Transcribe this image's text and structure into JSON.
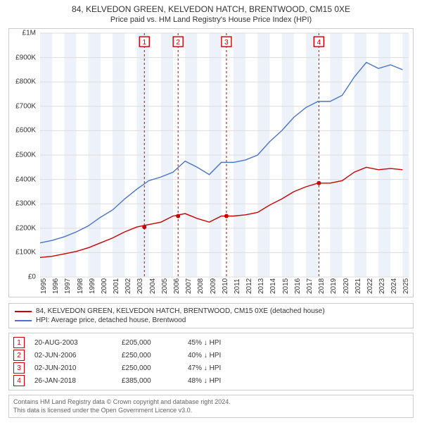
{
  "title_line1": "84, KELVEDON GREEN, KELVEDON HATCH, BRENTWOOD, CM15 0XE",
  "title_line2": "Price paid vs. HM Land Registry's House Price Index (HPI)",
  "chart": {
    "type": "line",
    "background_color": "#ffffff",
    "grid_color": "#dddddd",
    "border_color": "#cccccc",
    "band_color": "#e8eef7",
    "x": {
      "min": 1995,
      "max": 2025.5,
      "ticks": [
        1995,
        1996,
        1997,
        1998,
        1999,
        2000,
        2001,
        2002,
        2003,
        2004,
        2005,
        2006,
        2007,
        2008,
        2009,
        2010,
        2011,
        2012,
        2013,
        2014,
        2015,
        2016,
        2017,
        2018,
        2019,
        2020,
        2021,
        2022,
        2023,
        2024,
        2025
      ]
    },
    "y": {
      "min": 0,
      "max": 1000000,
      "ticks": [
        0,
        100000,
        200000,
        300000,
        400000,
        500000,
        600000,
        700000,
        800000,
        900000,
        1000000
      ],
      "tick_labels": [
        "£0",
        "£100K",
        "£200K",
        "£300K",
        "£400K",
        "£500K",
        "£600K",
        "£700K",
        "£800K",
        "£900K",
        "£1M"
      ]
    },
    "bands": [
      [
        1995,
        1996
      ],
      [
        1997,
        1998
      ],
      [
        1999,
        2000
      ],
      [
        2001,
        2002
      ],
      [
        2003,
        2004
      ],
      [
        2005,
        2006
      ],
      [
        2007,
        2008
      ],
      [
        2009,
        2010
      ],
      [
        2011,
        2012
      ],
      [
        2013,
        2014
      ],
      [
        2015,
        2016
      ],
      [
        2017,
        2018
      ],
      [
        2019,
        2020
      ],
      [
        2021,
        2022
      ],
      [
        2023,
        2024
      ],
      [
        2025,
        2025.5
      ]
    ],
    "event_lines": [
      2003.63,
      2006.42,
      2010.42,
      2018.07
    ],
    "event_line_color": "#cc0000",
    "series": [
      {
        "id": "hpi",
        "label": "HPI: Average price, detached house, Brentwood",
        "color": "#4a74c9",
        "points": [
          [
            1995,
            140000
          ],
          [
            1996,
            150000
          ],
          [
            1997,
            165000
          ],
          [
            1998,
            185000
          ],
          [
            1999,
            210000
          ],
          [
            2000,
            245000
          ],
          [
            2001,
            275000
          ],
          [
            2002,
            320000
          ],
          [
            2003,
            360000
          ],
          [
            2004,
            395000
          ],
          [
            2005,
            410000
          ],
          [
            2006,
            430000
          ],
          [
            2007,
            475000
          ],
          [
            2008,
            450000
          ],
          [
            2009,
            420000
          ],
          [
            2010,
            470000
          ],
          [
            2011,
            470000
          ],
          [
            2012,
            480000
          ],
          [
            2013,
            500000
          ],
          [
            2014,
            555000
          ],
          [
            2015,
            600000
          ],
          [
            2016,
            655000
          ],
          [
            2017,
            695000
          ],
          [
            2018,
            720000
          ],
          [
            2019,
            720000
          ],
          [
            2020,
            745000
          ],
          [
            2021,
            820000
          ],
          [
            2022,
            880000
          ],
          [
            2023,
            855000
          ],
          [
            2024,
            870000
          ],
          [
            2025,
            850000
          ]
        ]
      },
      {
        "id": "property",
        "label": "84, KELVEDON GREEN, KELVEDON HATCH, BRENTWOOD, CM15 0XE (detached house)",
        "color": "#cc0000",
        "points": [
          [
            1995,
            80000
          ],
          [
            1996,
            85000
          ],
          [
            1997,
            95000
          ],
          [
            1998,
            105000
          ],
          [
            1999,
            120000
          ],
          [
            2000,
            140000
          ],
          [
            2001,
            160000
          ],
          [
            2002,
            185000
          ],
          [
            2003,
            205000
          ],
          [
            2004,
            215000
          ],
          [
            2005,
            225000
          ],
          [
            2006,
            250000
          ],
          [
            2007,
            260000
          ],
          [
            2008,
            240000
          ],
          [
            2009,
            225000
          ],
          [
            2010,
            250000
          ],
          [
            2011,
            250000
          ],
          [
            2012,
            255000
          ],
          [
            2013,
            265000
          ],
          [
            2014,
            295000
          ],
          [
            2015,
            320000
          ],
          [
            2016,
            350000
          ],
          [
            2017,
            370000
          ],
          [
            2018,
            385000
          ],
          [
            2019,
            385000
          ],
          [
            2020,
            395000
          ],
          [
            2021,
            430000
          ],
          [
            2022,
            450000
          ],
          [
            2023,
            440000
          ],
          [
            2024,
            445000
          ],
          [
            2025,
            440000
          ]
        ]
      }
    ],
    "markers": [
      {
        "n": "1",
        "x": 2003.63,
        "y": 205000,
        "label_y": 965000,
        "color": "#cc0000"
      },
      {
        "n": "2",
        "x": 2006.42,
        "y": 250000,
        "label_y": 965000,
        "color": "#cc0000"
      },
      {
        "n": "3",
        "x": 2010.42,
        "y": 250000,
        "label_y": 965000,
        "color": "#cc0000"
      },
      {
        "n": "4",
        "x": 2018.07,
        "y": 385000,
        "label_y": 965000,
        "color": "#cc0000"
      }
    ]
  },
  "legend": [
    {
      "color": "#cc0000",
      "label": "84, KELVEDON GREEN, KELVEDON HATCH, BRENTWOOD, CM15 0XE (detached house)"
    },
    {
      "color": "#4a74c9",
      "label": "HPI: Average price, detached house, Brentwood"
    }
  ],
  "transactions": {
    "marker_color": "#cc0000",
    "diff_suffix": "↓ HPI",
    "rows": [
      {
        "n": "1",
        "date": "20-AUG-2003",
        "price": "£205,000",
        "diff": "45%"
      },
      {
        "n": "2",
        "date": "02-JUN-2006",
        "price": "£250,000",
        "diff": "40%"
      },
      {
        "n": "3",
        "date": "02-JUN-2010",
        "price": "£250,000",
        "diff": "47%"
      },
      {
        "n": "4",
        "date": "26-JAN-2018",
        "price": "£385,000",
        "diff": "48%"
      }
    ]
  },
  "footer_line1": "Contains HM Land Registry data © Crown copyright and database right 2024.",
  "footer_line2": "This data is licensed under the Open Government Licence v3.0."
}
